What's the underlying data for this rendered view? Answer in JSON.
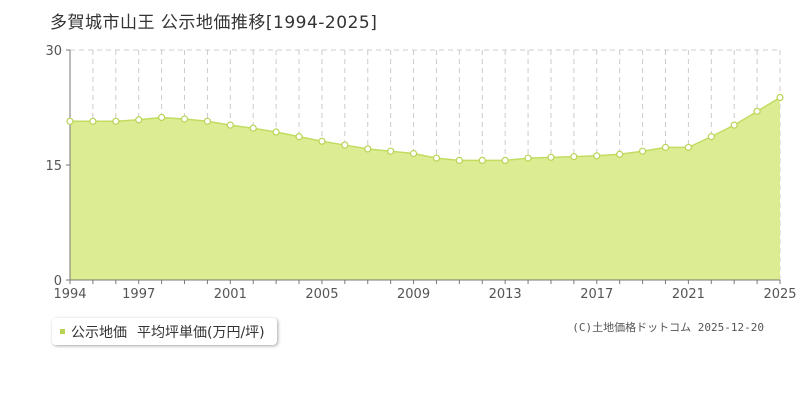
{
  "page_title": "多賀城市山王  公示地価推移[1994-2025]",
  "legend": {
    "label": "公示地価",
    "unit_label": "平均坪単価(万円/坪)"
  },
  "credit": "(C)土地価格ドットコム  2025-12-20",
  "colors": {
    "area_fill": "#dcec92",
    "line": "#c2dc62",
    "point_fill": "#ffffff",
    "point_stroke": "#b8d456",
    "marker": "#b8d456",
    "grid": "#cccccc",
    "axis": "#777777",
    "tick_text": "#555555"
  },
  "chart_data": {
    "type": "area",
    "title": "",
    "xlabel": "",
    "ylabel": "",
    "x": [
      1994,
      1995,
      1996,
      1997,
      1998,
      1999,
      2000,
      2001,
      2002,
      2003,
      2004,
      2005,
      2006,
      2007,
      2008,
      2009,
      2010,
      2011,
      2012,
      2013,
      2014,
      2015,
      2016,
      2017,
      2018,
      2019,
      2020,
      2021,
      2022,
      2023,
      2024,
      2025
    ],
    "series": [
      {
        "name": "公示地価",
        "values": [
          20.7,
          20.7,
          20.7,
          20.9,
          21.2,
          21.0,
          20.7,
          20.2,
          19.8,
          19.3,
          18.7,
          18.1,
          17.6,
          17.1,
          16.8,
          16.5,
          15.9,
          15.6,
          15.6,
          15.6,
          15.9,
          16.0,
          16.1,
          16.2,
          16.4,
          16.8,
          17.3,
          17.3,
          18.7,
          20.2,
          22.0,
          23.8
        ]
      }
    ],
    "xlim": [
      1994,
      2025
    ],
    "ylim": [
      0,
      30
    ],
    "y_ticks": [
      "0",
      "15",
      "30"
    ],
    "x_ticks": [
      "1994",
      "1997",
      "2001",
      "2005",
      "2009",
      "2013",
      "2017",
      "2021",
      "2025"
    ],
    "grid": {
      "vertical": true,
      "horizontal": true
    }
  }
}
